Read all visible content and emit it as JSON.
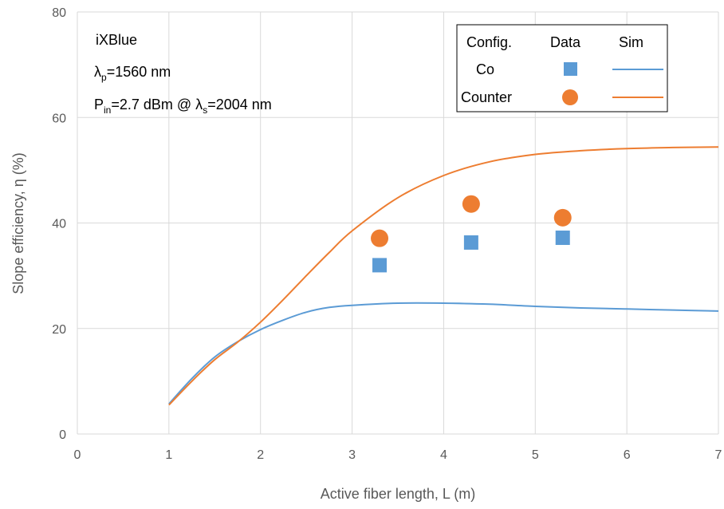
{
  "chart_data": {
    "type": "scatter",
    "xlabel": "Active fiber length, L (m)",
    "ylabel": "Slope efficiency, η (%)",
    "xlim": [
      0,
      7
    ],
    "ylim": [
      0,
      80
    ],
    "x_ticks": [
      "0",
      "1",
      "2",
      "3",
      "4",
      "5",
      "6",
      "7"
    ],
    "y_ticks": [
      "0",
      "20",
      "40",
      "60",
      "80"
    ],
    "grid": true,
    "annotations": {
      "manufacturer": "iXBlue",
      "pump_label": "λ",
      "pump_sub": "p",
      "pump_value": "=1560 nm",
      "pin_label": "P",
      "pin_sub": "in",
      "pin_value": "=2.7 dBm @ λ",
      "signal_sub": "s",
      "signal_value": "=2004 nm"
    },
    "legend": {
      "position": "top-right",
      "header_config": "Config.",
      "header_data": "Data",
      "header_sim": "Sim",
      "rows": [
        "Co",
        "Counter"
      ]
    },
    "series": [
      {
        "name": "Co",
        "kind": "data",
        "marker": "square",
        "color": "#5B9BD5",
        "x": [
          3.3,
          4.3,
          5.3
        ],
        "y": [
          32,
          36.3,
          37.2
        ]
      },
      {
        "name": "Counter",
        "kind": "data",
        "marker": "circle",
        "color": "#ED7D31",
        "x": [
          3.3,
          4.3,
          5.3
        ],
        "y": [
          37.1,
          43.6,
          41
        ]
      },
      {
        "name": "Co",
        "kind": "sim",
        "color": "#5B9BD5",
        "x": [
          1,
          1.25,
          1.5,
          1.75,
          2,
          2.25,
          2.5,
          2.75,
          3,
          3.5,
          4,
          4.5,
          5,
          5.5,
          6,
          6.5,
          7
        ],
        "y": [
          5.7,
          10.5,
          14.6,
          17.5,
          19.8,
          21.6,
          23.1,
          24.0,
          24.4,
          24.8,
          24.8,
          24.6,
          24.2,
          23.9,
          23.7,
          23.5,
          23.3
        ]
      },
      {
        "name": "Counter",
        "kind": "sim",
        "color": "#ED7D31",
        "x": [
          1,
          1.25,
          1.5,
          1.75,
          2,
          2.25,
          2.5,
          2.75,
          3,
          3.5,
          4,
          4.5,
          5,
          5.5,
          6,
          6.5,
          7
        ],
        "y": [
          5.5,
          10.0,
          14.1,
          17.4,
          21.2,
          25.5,
          30.0,
          34.4,
          38.5,
          44.8,
          49.0,
          51.6,
          53.0,
          53.7,
          54.1,
          54.3,
          54.4
        ]
      }
    ]
  }
}
